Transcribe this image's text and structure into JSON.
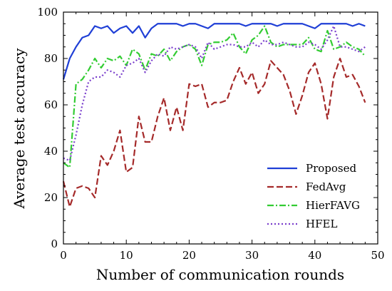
{
  "chart_data": {
    "type": "line",
    "title": "",
    "xlabel": "Number of communication rounds",
    "ylabel": "Average test accuracy",
    "xlim": [
      0,
      50
    ],
    "ylim": [
      0,
      100
    ],
    "xticks": [
      0,
      10,
      20,
      30,
      40,
      50
    ],
    "yticks": [
      0,
      20,
      40,
      60,
      80,
      100
    ],
    "grid": false,
    "legend_position": "bottom-right",
    "x": [
      0,
      1,
      2,
      3,
      4,
      5,
      6,
      7,
      8,
      9,
      10,
      11,
      12,
      13,
      14,
      15,
      16,
      17,
      18,
      19,
      20,
      21,
      22,
      23,
      24,
      25,
      26,
      27,
      28,
      29,
      30,
      31,
      32,
      33,
      34,
      35,
      36,
      37,
      38,
      39,
      40,
      41,
      42,
      43,
      44,
      45,
      46,
      47,
      48
    ],
    "series": [
      {
        "name": "Proposed",
        "color": "#1f3fd6",
        "dash": "solid",
        "values": [
          71,
          80,
          85,
          89,
          90,
          94,
          93,
          94,
          91,
          93,
          94,
          91,
          94,
          89,
          93,
          95,
          95,
          95,
          95,
          94,
          95,
          95,
          94,
          93,
          95,
          95,
          95,
          95,
          95,
          94,
          95,
          95,
          95,
          95,
          94,
          95,
          95,
          95,
          95,
          94,
          93,
          95,
          95,
          95,
          95,
          95,
          94,
          95,
          94
        ]
      },
      {
        "name": "FedAvg",
        "color": "#a52a2a",
        "dash": "dashed",
        "values": [
          27,
          16,
          24,
          25,
          24,
          20,
          38,
          34,
          40,
          49,
          31,
          33,
          55,
          44,
          44,
          55,
          63,
          49,
          59,
          49,
          69,
          68,
          69,
          59,
          61,
          61,
          62,
          70,
          76,
          69,
          74,
          65,
          69,
          79,
          76,
          73,
          66,
          56,
          64,
          74,
          78,
          69,
          54,
          72,
          80,
          72,
          73,
          68,
          61
        ]
      },
      {
        "name": "HierFAVG",
        "color": "#33cc33",
        "dash": "dashdot",
        "values": [
          35,
          33,
          69,
          71,
          75,
          80,
          76,
          80,
          79,
          81,
          77,
          84,
          82,
          75,
          82,
          81,
          84,
          79,
          83,
          85,
          86,
          84,
          77,
          86,
          87,
          87,
          88,
          91,
          85,
          82,
          88,
          90,
          94,
          87,
          85,
          86,
          86,
          86,
          86,
          89,
          84,
          83,
          92,
          84,
          85,
          87,
          85,
          84,
          81
        ]
      },
      {
        "name": "HFEL",
        "color": "#7a3fcc",
        "dash": "dotted",
        "values": [
          37,
          36,
          47,
          60,
          70,
          72,
          72,
          75,
          74,
          72,
          77,
          78,
          80,
          74,
          79,
          82,
          81,
          85,
          84,
          85,
          86,
          85,
          80,
          87,
          84,
          85,
          86,
          86,
          85,
          85,
          87,
          85,
          88,
          86,
          86,
          87,
          86,
          85,
          85,
          87,
          86,
          84,
          88,
          94,
          85,
          85,
          84,
          83,
          85
        ]
      }
    ]
  }
}
